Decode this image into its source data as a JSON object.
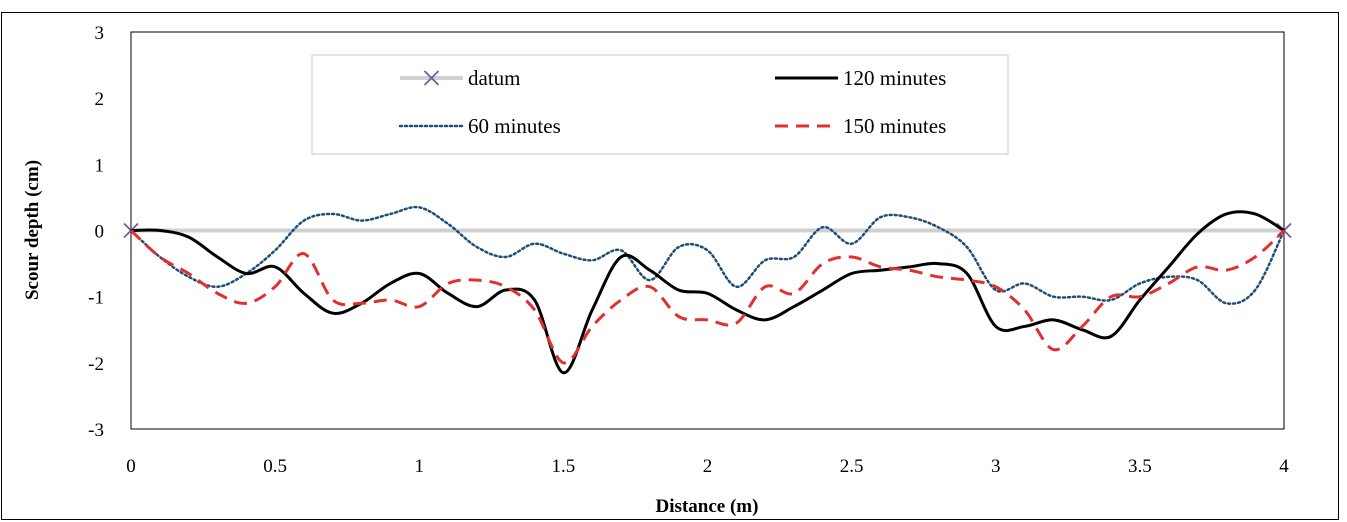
{
  "chart_data": {
    "type": "line",
    "title": "",
    "xlabel": "Distance (m)",
    "ylabel": "Scour depth (cm)",
    "xlim": [
      0,
      4
    ],
    "ylim": [
      -3,
      3
    ],
    "xticks": [
      0,
      0.5,
      1,
      1.5,
      2,
      2.5,
      3,
      3.5,
      4
    ],
    "yticks": [
      -3,
      -2,
      -1,
      0,
      1,
      2,
      3
    ],
    "xtick_labels": [
      "0",
      "0.5",
      "1",
      "1.5",
      "2",
      "2.5",
      "3",
      "3.5",
      "4"
    ],
    "ytick_labels": [
      "-3",
      "-2",
      "-1",
      "0",
      "1",
      "2",
      "3"
    ],
    "grid": false,
    "legend_position": "top-center",
    "series": [
      {
        "name": "datum",
        "color": "#d0d0d0",
        "style": "solid",
        "marker": "x",
        "marker_color": "#7a5a9a",
        "x": [
          0,
          4
        ],
        "y": [
          0,
          0
        ]
      },
      {
        "name": "60 minutes",
        "color": "#1f4e79",
        "style": "dotted",
        "x": [
          0,
          0.1,
          0.2,
          0.3,
          0.4,
          0.5,
          0.6,
          0.7,
          0.8,
          0.9,
          1.0,
          1.1,
          1.2,
          1.3,
          1.4,
          1.5,
          1.6,
          1.7,
          1.8,
          1.9,
          2.0,
          2.1,
          2.2,
          2.3,
          2.4,
          2.5,
          2.6,
          2.7,
          2.8,
          2.9,
          3.0,
          3.1,
          3.2,
          3.3,
          3.4,
          3.5,
          3.6,
          3.7,
          3.8,
          3.9,
          4.0
        ],
        "y": [
          0,
          -0.4,
          -0.7,
          -0.85,
          -0.65,
          -0.3,
          0.15,
          0.25,
          0.15,
          0.25,
          0.35,
          0.1,
          -0.25,
          -0.4,
          -0.2,
          -0.35,
          -0.45,
          -0.3,
          -0.75,
          -0.25,
          -0.3,
          -0.85,
          -0.45,
          -0.4,
          0.05,
          -0.2,
          0.2,
          0.2,
          0.05,
          -0.25,
          -0.9,
          -0.8,
          -1.0,
          -1.0,
          -1.05,
          -0.8,
          -0.7,
          -0.75,
          -1.1,
          -0.9,
          0
        ]
      },
      {
        "name": "120 minutes",
        "color": "#000000",
        "style": "solid",
        "x": [
          0,
          0.1,
          0.2,
          0.3,
          0.4,
          0.5,
          0.6,
          0.7,
          0.8,
          0.9,
          1.0,
          1.1,
          1.2,
          1.3,
          1.4,
          1.5,
          1.6,
          1.7,
          1.8,
          1.9,
          2.0,
          2.1,
          2.2,
          2.3,
          2.4,
          2.5,
          2.6,
          2.7,
          2.8,
          2.9,
          3.0,
          3.1,
          3.2,
          3.3,
          3.4,
          3.5,
          3.6,
          3.7,
          3.8,
          3.9,
          4.0
        ],
        "y": [
          0,
          0,
          -0.1,
          -0.4,
          -0.65,
          -0.55,
          -0.95,
          -1.25,
          -1.1,
          -0.8,
          -0.65,
          -0.95,
          -1.15,
          -0.9,
          -1.05,
          -2.15,
          -1.2,
          -0.4,
          -0.6,
          -0.9,
          -0.95,
          -1.2,
          -1.35,
          -1.15,
          -0.9,
          -0.65,
          -0.6,
          -0.55,
          -0.5,
          -0.65,
          -1.45,
          -1.45,
          -1.35,
          -1.5,
          -1.6,
          -1.05,
          -0.55,
          -0.05,
          0.25,
          0.25,
          0
        ]
      },
      {
        "name": "150 minutes",
        "color": "#e03030",
        "style": "dashed",
        "x": [
          0,
          0.1,
          0.2,
          0.3,
          0.4,
          0.5,
          0.6,
          0.7,
          0.8,
          0.9,
          1.0,
          1.1,
          1.2,
          1.3,
          1.4,
          1.5,
          1.6,
          1.7,
          1.8,
          1.9,
          2.0,
          2.1,
          2.2,
          2.3,
          2.4,
          2.5,
          2.6,
          2.7,
          2.8,
          2.9,
          3.0,
          3.1,
          3.2,
          3.3,
          3.4,
          3.5,
          3.6,
          3.7,
          3.8,
          3.9,
          4.0
        ],
        "y": [
          0,
          -0.4,
          -0.65,
          -0.95,
          -1.1,
          -0.85,
          -0.35,
          -1.05,
          -1.1,
          -1.05,
          -1.15,
          -0.8,
          -0.75,
          -0.85,
          -1.2,
          -2.0,
          -1.45,
          -1.05,
          -0.85,
          -1.3,
          -1.35,
          -1.4,
          -0.85,
          -0.95,
          -0.5,
          -0.4,
          -0.55,
          -0.6,
          -0.7,
          -0.75,
          -0.85,
          -1.2,
          -1.8,
          -1.45,
          -1.0,
          -1.0,
          -0.8,
          -0.55,
          -0.6,
          -0.4,
          0
        ]
      }
    ]
  }
}
